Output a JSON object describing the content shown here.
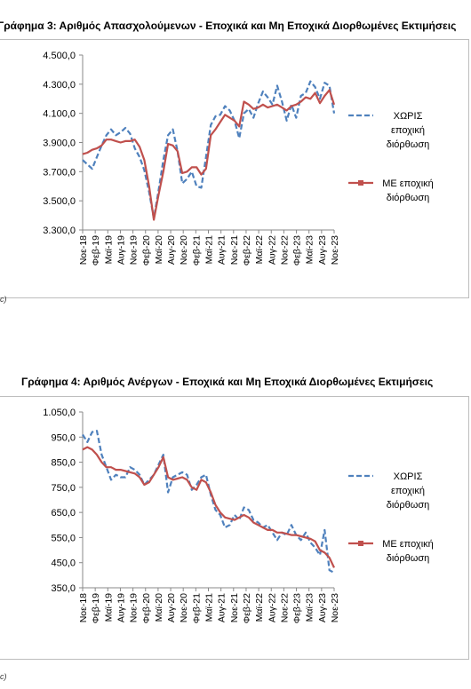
{
  "chart_data": [
    {
      "type": "line",
      "title": "Γράφημα 3: Αριθμός Απασχολούμενων - Εποχικά και Μη Εποχικά Διορθωμένες Εκτιμήσεις",
      "ylim": [
        3300,
        4500
      ],
      "yticks": [
        3300,
        3500,
        3700,
        3900,
        4100,
        4300,
        4500
      ],
      "ytick_labels": [
        "3.300,0",
        "3.500,0",
        "3.700,0",
        "3.900,0",
        "4.100,0",
        "4.300,0",
        "4.500,0"
      ],
      "xtick_labels": [
        "Νοε-18",
        "Φεβ-19",
        "Μαϊ-19",
        "Αυγ-19",
        "Νοε-19",
        "Φεβ-20",
        "Μαϊ-20",
        "Αυγ-20",
        "Νοε-20",
        "Φεβ-21",
        "Μαϊ-21",
        "Αυγ-21",
        "Νοε-21",
        "Φεβ-22",
        "Μαϊ-22",
        "Αυγ-22",
        "Νοε-22",
        "Φεβ-23",
        "Μαϊ-23",
        "Αυγ-23",
        "Νοε-23"
      ],
      "legend_position": "right",
      "series": [
        {
          "name": "ΧΩΡΙΣ εποχική διόρθωση",
          "color": "#4f81bd",
          "dash": true,
          "values": [
            3780,
            3750,
            3720,
            3800,
            3880,
            3950,
            3990,
            3950,
            3970,
            4000,
            3960,
            3860,
            3800,
            3710,
            3560,
            3380,
            3570,
            3780,
            3950,
            3990,
            3840,
            3620,
            3650,
            3700,
            3600,
            3590,
            3800,
            4020,
            4080,
            4090,
            4150,
            4120,
            4050,
            3930,
            4100,
            4130,
            4070,
            4170,
            4250,
            4210,
            4160,
            4290,
            4180,
            4050,
            4160,
            4070,
            4220,
            4240,
            4320,
            4280,
            4200,
            4310,
            4290,
            4100
          ]
        },
        {
          "name": "ΜΕ εποχική διόρθωση",
          "color": "#c0504d",
          "dash": false,
          "values": [
            3820,
            3830,
            3850,
            3860,
            3880,
            3920,
            3920,
            3910,
            3900,
            3910,
            3910,
            3920,
            3870,
            3780,
            3600,
            3370,
            3540,
            3700,
            3890,
            3880,
            3840,
            3690,
            3700,
            3730,
            3730,
            3680,
            3720,
            3950,
            3990,
            4040,
            4090,
            4070,
            4050,
            4010,
            4180,
            4160,
            4130,
            4140,
            4160,
            4140,
            4150,
            4160,
            4140,
            4120,
            4150,
            4160,
            4180,
            4210,
            4200,
            4240,
            4170,
            4220,
            4260,
            4160
          ]
        }
      ]
    },
    {
      "type": "line",
      "title": "Γράφημα 4: Αριθμός Ανέργων - Εποχικά και Μη Εποχικά Διορθωμένες Εκτιμήσεις",
      "ylim": [
        350,
        1050
      ],
      "yticks": [
        350,
        450,
        550,
        650,
        750,
        850,
        950,
        1050
      ],
      "ytick_labels": [
        "350,0",
        "450,0",
        "550,0",
        "650,0",
        "750,0",
        "850,0",
        "950,0",
        "1.050,0"
      ],
      "xtick_labels": [
        "Νοε-18",
        "Φεβ-19",
        "Μαϊ-19",
        "Αυγ-19",
        "Νοε-19",
        "Φεβ-20",
        "Μαϊ-20",
        "Αυγ-20",
        "Νοε-20",
        "Φεβ-21",
        "Μαϊ-21",
        "Αυγ-21",
        "Νοε-21",
        "Φεβ-22",
        "Μαϊ-22",
        "Αυγ-22",
        "Νοε-22",
        "Φεβ-23",
        "Μαϊ-23",
        "Αυγ-23",
        "Νοε-23"
      ],
      "legend_position": "right",
      "series": [
        {
          "name": "ΧΩΡΙΣ εποχική διόρθωση",
          "color": "#4f81bd",
          "dash": true,
          "values": [
            960,
            930,
            970,
            975,
            880,
            830,
            780,
            800,
            790,
            790,
            830,
            820,
            800,
            760,
            780,
            800,
            840,
            880,
            730,
            790,
            800,
            810,
            800,
            740,
            760,
            790,
            800,
            720,
            660,
            640,
            590,
            600,
            640,
            620,
            670,
            660,
            620,
            610,
            590,
            600,
            570,
            540,
            570,
            560,
            600,
            560,
            540,
            570,
            530,
            510,
            480,
            580,
            420,
            410
          ]
        },
        {
          "name": "ΜΕ εποχική διόρθωση",
          "color": "#c0504d",
          "dash": false,
          "values": [
            900,
            910,
            900,
            880,
            850,
            830,
            830,
            820,
            820,
            815,
            810,
            805,
            790,
            760,
            770,
            800,
            830,
            870,
            790,
            780,
            785,
            790,
            780,
            750,
            740,
            780,
            770,
            730,
            680,
            650,
            630,
            625,
            620,
            630,
            640,
            630,
            610,
            600,
            590,
            580,
            580,
            570,
            570,
            565,
            560,
            560,
            555,
            550,
            545,
            535,
            500,
            490,
            470,
            430
          ]
        }
      ]
    }
  ],
  "legend_words": [
    [
      "ΧΩΡΙΣ",
      "εποχική",
      "διόρθωση"
    ],
    [
      "ΜΕ εποχική",
      "διόρθωση"
    ]
  ],
  "notes": [
    "c)",
    "c)"
  ]
}
